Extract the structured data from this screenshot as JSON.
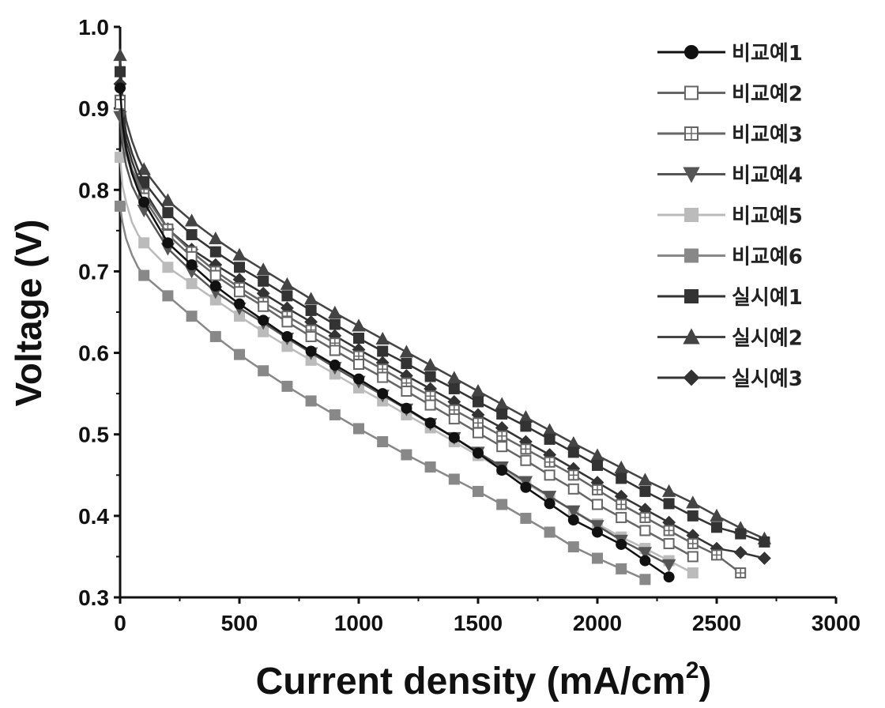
{
  "chart_data": {
    "type": "line",
    "title": "",
    "xlabel": "Current density (mA/cm",
    "xlabel_sup": "2",
    "xlabel_close": ")",
    "ylabel": "Voltage (V)",
    "xlim": [
      0,
      3000
    ],
    "ylim": [
      0.3,
      1.0
    ],
    "x_ticks": [
      "0",
      "500",
      "1000",
      "1500",
      "2000",
      "2500",
      "3000"
    ],
    "y_ticks": [
      "0.3",
      "0.4",
      "0.5",
      "0.6",
      "0.7",
      "0.8",
      "0.9",
      "1.0"
    ],
    "grid": false,
    "legend_position": "top-right",
    "series": [
      {
        "name": "비교예1",
        "marker": "circle",
        "filled": true,
        "color": "#111111",
        "points": [
          [
            0,
            0.925
          ],
          [
            10,
            0.88
          ],
          [
            25,
            0.85
          ],
          [
            50,
            0.82
          ],
          [
            75,
            0.8
          ],
          [
            100,
            0.785
          ],
          [
            200,
            0.735
          ],
          [
            300,
            0.708
          ],
          [
            400,
            0.682
          ],
          [
            500,
            0.66
          ],
          [
            600,
            0.64
          ],
          [
            700,
            0.62
          ],
          [
            800,
            0.602
          ],
          [
            900,
            0.585
          ],
          [
            1000,
            0.568
          ],
          [
            1100,
            0.55
          ],
          [
            1200,
            0.532
          ],
          [
            1300,
            0.514
          ],
          [
            1400,
            0.496
          ],
          [
            1500,
            0.477
          ],
          [
            1600,
            0.456
          ],
          [
            1700,
            0.435
          ],
          [
            1800,
            0.415
          ],
          [
            1900,
            0.395
          ],
          [
            2000,
            0.38
          ],
          [
            2100,
            0.365
          ],
          [
            2200,
            0.345
          ],
          [
            2300,
            0.325
          ]
        ]
      },
      {
        "name": "비교예2",
        "marker": "square",
        "filled": false,
        "color": "#666666",
        "points": [
          [
            0,
            0.905
          ],
          [
            10,
            0.87
          ],
          [
            25,
            0.845
          ],
          [
            50,
            0.82
          ],
          [
            75,
            0.805
          ],
          [
            100,
            0.79
          ],
          [
            200,
            0.745
          ],
          [
            300,
            0.718
          ],
          [
            400,
            0.695
          ],
          [
            500,
            0.675
          ],
          [
            600,
            0.657
          ],
          [
            700,
            0.638
          ],
          [
            800,
            0.62
          ],
          [
            900,
            0.603
          ],
          [
            1000,
            0.586
          ],
          [
            1100,
            0.57
          ],
          [
            1200,
            0.553
          ],
          [
            1300,
            0.536
          ],
          [
            1400,
            0.519
          ],
          [
            1500,
            0.502
          ],
          [
            1600,
            0.485
          ],
          [
            1700,
            0.468
          ],
          [
            1800,
            0.45
          ],
          [
            1900,
            0.433
          ],
          [
            2000,
            0.414
          ],
          [
            2100,
            0.398
          ],
          [
            2200,
            0.382
          ],
          [
            2300,
            0.366
          ],
          [
            2400,
            0.35
          ]
        ]
      },
      {
        "name": "비교예3",
        "marker": "square-cross",
        "filled": false,
        "color": "#666666",
        "points": [
          [
            0,
            0.91
          ],
          [
            10,
            0.875
          ],
          [
            25,
            0.85
          ],
          [
            50,
            0.825
          ],
          [
            75,
            0.81
          ],
          [
            100,
            0.795
          ],
          [
            200,
            0.752
          ],
          [
            300,
            0.724
          ],
          [
            400,
            0.7
          ],
          [
            500,
            0.68
          ],
          [
            600,
            0.662
          ],
          [
            700,
            0.645
          ],
          [
            800,
            0.628
          ],
          [
            900,
            0.612
          ],
          [
            1000,
            0.596
          ],
          [
            1100,
            0.58
          ],
          [
            1200,
            0.563
          ],
          [
            1300,
            0.547
          ],
          [
            1400,
            0.53
          ],
          [
            1500,
            0.514
          ],
          [
            1600,
            0.498
          ],
          [
            1700,
            0.482
          ],
          [
            1800,
            0.466
          ],
          [
            1900,
            0.45
          ],
          [
            2000,
            0.432
          ],
          [
            2100,
            0.414
          ],
          [
            2200,
            0.398
          ],
          [
            2300,
            0.382
          ],
          [
            2400,
            0.366
          ],
          [
            2500,
            0.352
          ],
          [
            2600,
            0.33
          ]
        ]
      },
      {
        "name": "비교예4",
        "marker": "triangle-down",
        "filled": true,
        "color": "#555555",
        "points": [
          [
            0,
            0.89
          ],
          [
            10,
            0.855
          ],
          [
            25,
            0.83
          ],
          [
            50,
            0.805
          ],
          [
            75,
            0.79
          ],
          [
            100,
            0.775
          ],
          [
            200,
            0.728
          ],
          [
            300,
            0.7
          ],
          [
            400,
            0.675
          ],
          [
            500,
            0.655
          ],
          [
            600,
            0.637
          ],
          [
            700,
            0.618
          ],
          [
            800,
            0.6
          ],
          [
            900,
            0.582
          ],
          [
            1000,
            0.565
          ],
          [
            1100,
            0.548
          ],
          [
            1200,
            0.531
          ],
          [
            1300,
            0.513
          ],
          [
            1400,
            0.496
          ],
          [
            1500,
            0.478
          ],
          [
            1600,
            0.46
          ],
          [
            1700,
            0.442
          ],
          [
            1800,
            0.424
          ],
          [
            1900,
            0.406
          ],
          [
            2000,
            0.388
          ],
          [
            2100,
            0.37
          ],
          [
            2200,
            0.355
          ],
          [
            2300,
            0.34
          ]
        ]
      },
      {
        "name": "비교예5",
        "marker": "square",
        "filled": true,
        "color": "#bbbbbb",
        "points": [
          [
            0,
            0.84
          ],
          [
            10,
            0.805
          ],
          [
            25,
            0.785
          ],
          [
            50,
            0.76
          ],
          [
            75,
            0.745
          ],
          [
            100,
            0.735
          ],
          [
            200,
            0.705
          ],
          [
            300,
            0.685
          ],
          [
            400,
            0.665
          ],
          [
            500,
            0.645
          ],
          [
            600,
            0.626
          ],
          [
            700,
            0.608
          ],
          [
            800,
            0.591
          ],
          [
            900,
            0.574
          ],
          [
            1000,
            0.557
          ],
          [
            1100,
            0.541
          ],
          [
            1200,
            0.524
          ],
          [
            1300,
            0.508
          ],
          [
            1400,
            0.491
          ],
          [
            1500,
            0.474
          ],
          [
            1600,
            0.457
          ],
          [
            1700,
            0.44
          ],
          [
            1800,
            0.423
          ],
          [
            1900,
            0.406
          ],
          [
            2000,
            0.39
          ],
          [
            2100,
            0.374
          ],
          [
            2200,
            0.36
          ],
          [
            2300,
            0.345
          ],
          [
            2400,
            0.33
          ]
        ]
      },
      {
        "name": "비교예6",
        "marker": "square",
        "filled": true,
        "color": "#888888",
        "points": [
          [
            0,
            0.78
          ],
          [
            10,
            0.76
          ],
          [
            25,
            0.74
          ],
          [
            50,
            0.72
          ],
          [
            75,
            0.705
          ],
          [
            100,
            0.695
          ],
          [
            200,
            0.67
          ],
          [
            300,
            0.645
          ],
          [
            400,
            0.62
          ],
          [
            500,
            0.598
          ],
          [
            600,
            0.578
          ],
          [
            700,
            0.559
          ],
          [
            800,
            0.541
          ],
          [
            900,
            0.524
          ],
          [
            1000,
            0.507
          ],
          [
            1100,
            0.491
          ],
          [
            1200,
            0.475
          ],
          [
            1300,
            0.46
          ],
          [
            1400,
            0.445
          ],
          [
            1500,
            0.43
          ],
          [
            1600,
            0.414
          ],
          [
            1700,
            0.397
          ],
          [
            1800,
            0.38
          ],
          [
            1900,
            0.362
          ],
          [
            2000,
            0.348
          ],
          [
            2100,
            0.335
          ],
          [
            2200,
            0.322
          ]
        ]
      },
      {
        "name": "실시예1",
        "marker": "square",
        "filled": true,
        "color": "#333333",
        "points": [
          [
            0,
            0.945
          ],
          [
            10,
            0.9
          ],
          [
            25,
            0.87
          ],
          [
            50,
            0.845
          ],
          [
            75,
            0.825
          ],
          [
            100,
            0.81
          ],
          [
            200,
            0.772
          ],
          [
            300,
            0.745
          ],
          [
            400,
            0.724
          ],
          [
            500,
            0.705
          ],
          [
            600,
            0.688
          ],
          [
            700,
            0.67
          ],
          [
            800,
            0.652
          ],
          [
            900,
            0.635
          ],
          [
            1000,
            0.618
          ],
          [
            1100,
            0.602
          ],
          [
            1200,
            0.587
          ],
          [
            1300,
            0.571
          ],
          [
            1400,
            0.556
          ],
          [
            1500,
            0.54
          ],
          [
            1600,
            0.525
          ],
          [
            1700,
            0.51
          ],
          [
            1800,
            0.494
          ],
          [
            1900,
            0.478
          ],
          [
            2000,
            0.462
          ],
          [
            2100,
            0.446
          ],
          [
            2200,
            0.43
          ],
          [
            2300,
            0.415
          ],
          [
            2400,
            0.4
          ],
          [
            2500,
            0.386
          ],
          [
            2600,
            0.378
          ],
          [
            2700,
            0.368
          ]
        ]
      },
      {
        "name": "실시예2",
        "marker": "triangle-up",
        "filled": true,
        "color": "#444444",
        "points": [
          [
            0,
            0.965
          ],
          [
            10,
            0.915
          ],
          [
            25,
            0.885
          ],
          [
            50,
            0.86
          ],
          [
            75,
            0.84
          ],
          [
            100,
            0.825
          ],
          [
            200,
            0.787
          ],
          [
            300,
            0.762
          ],
          [
            400,
            0.74
          ],
          [
            500,
            0.72
          ],
          [
            600,
            0.702
          ],
          [
            700,
            0.684
          ],
          [
            800,
            0.666
          ],
          [
            900,
            0.649
          ],
          [
            1000,
            0.633
          ],
          [
            1100,
            0.617
          ],
          [
            1200,
            0.601
          ],
          [
            1300,
            0.585
          ],
          [
            1400,
            0.569
          ],
          [
            1500,
            0.553
          ],
          [
            1600,
            0.537
          ],
          [
            1700,
            0.521
          ],
          [
            1800,
            0.505
          ],
          [
            1900,
            0.489
          ],
          [
            2000,
            0.474
          ],
          [
            2100,
            0.459
          ],
          [
            2200,
            0.444
          ],
          [
            2300,
            0.43
          ],
          [
            2400,
            0.416
          ],
          [
            2500,
            0.4
          ],
          [
            2600,
            0.385
          ],
          [
            2700,
            0.372
          ]
        ]
      },
      {
        "name": "실시예3",
        "marker": "diamond",
        "filled": true,
        "color": "#333333",
        "points": [
          [
            0,
            0.93
          ],
          [
            10,
            0.89
          ],
          [
            25,
            0.86
          ],
          [
            50,
            0.835
          ],
          [
            75,
            0.815
          ],
          [
            100,
            0.8
          ],
          [
            200,
            0.752
          ],
          [
            300,
            0.727
          ],
          [
            400,
            0.708
          ],
          [
            500,
            0.69
          ],
          [
            600,
            0.673
          ],
          [
            700,
            0.655
          ],
          [
            800,
            0.638
          ],
          [
            900,
            0.621
          ],
          [
            1000,
            0.604
          ],
          [
            1100,
            0.588
          ],
          [
            1200,
            0.572
          ],
          [
            1300,
            0.556
          ],
          [
            1400,
            0.54
          ],
          [
            1500,
            0.524
          ],
          [
            1600,
            0.508
          ],
          [
            1700,
            0.491
          ],
          [
            1800,
            0.475
          ],
          [
            1900,
            0.458
          ],
          [
            2000,
            0.441
          ],
          [
            2100,
            0.424
          ],
          [
            2200,
            0.408
          ],
          [
            2300,
            0.392
          ],
          [
            2400,
            0.376
          ],
          [
            2500,
            0.36
          ],
          [
            2600,
            0.355
          ],
          [
            2700,
            0.348
          ]
        ]
      }
    ]
  }
}
